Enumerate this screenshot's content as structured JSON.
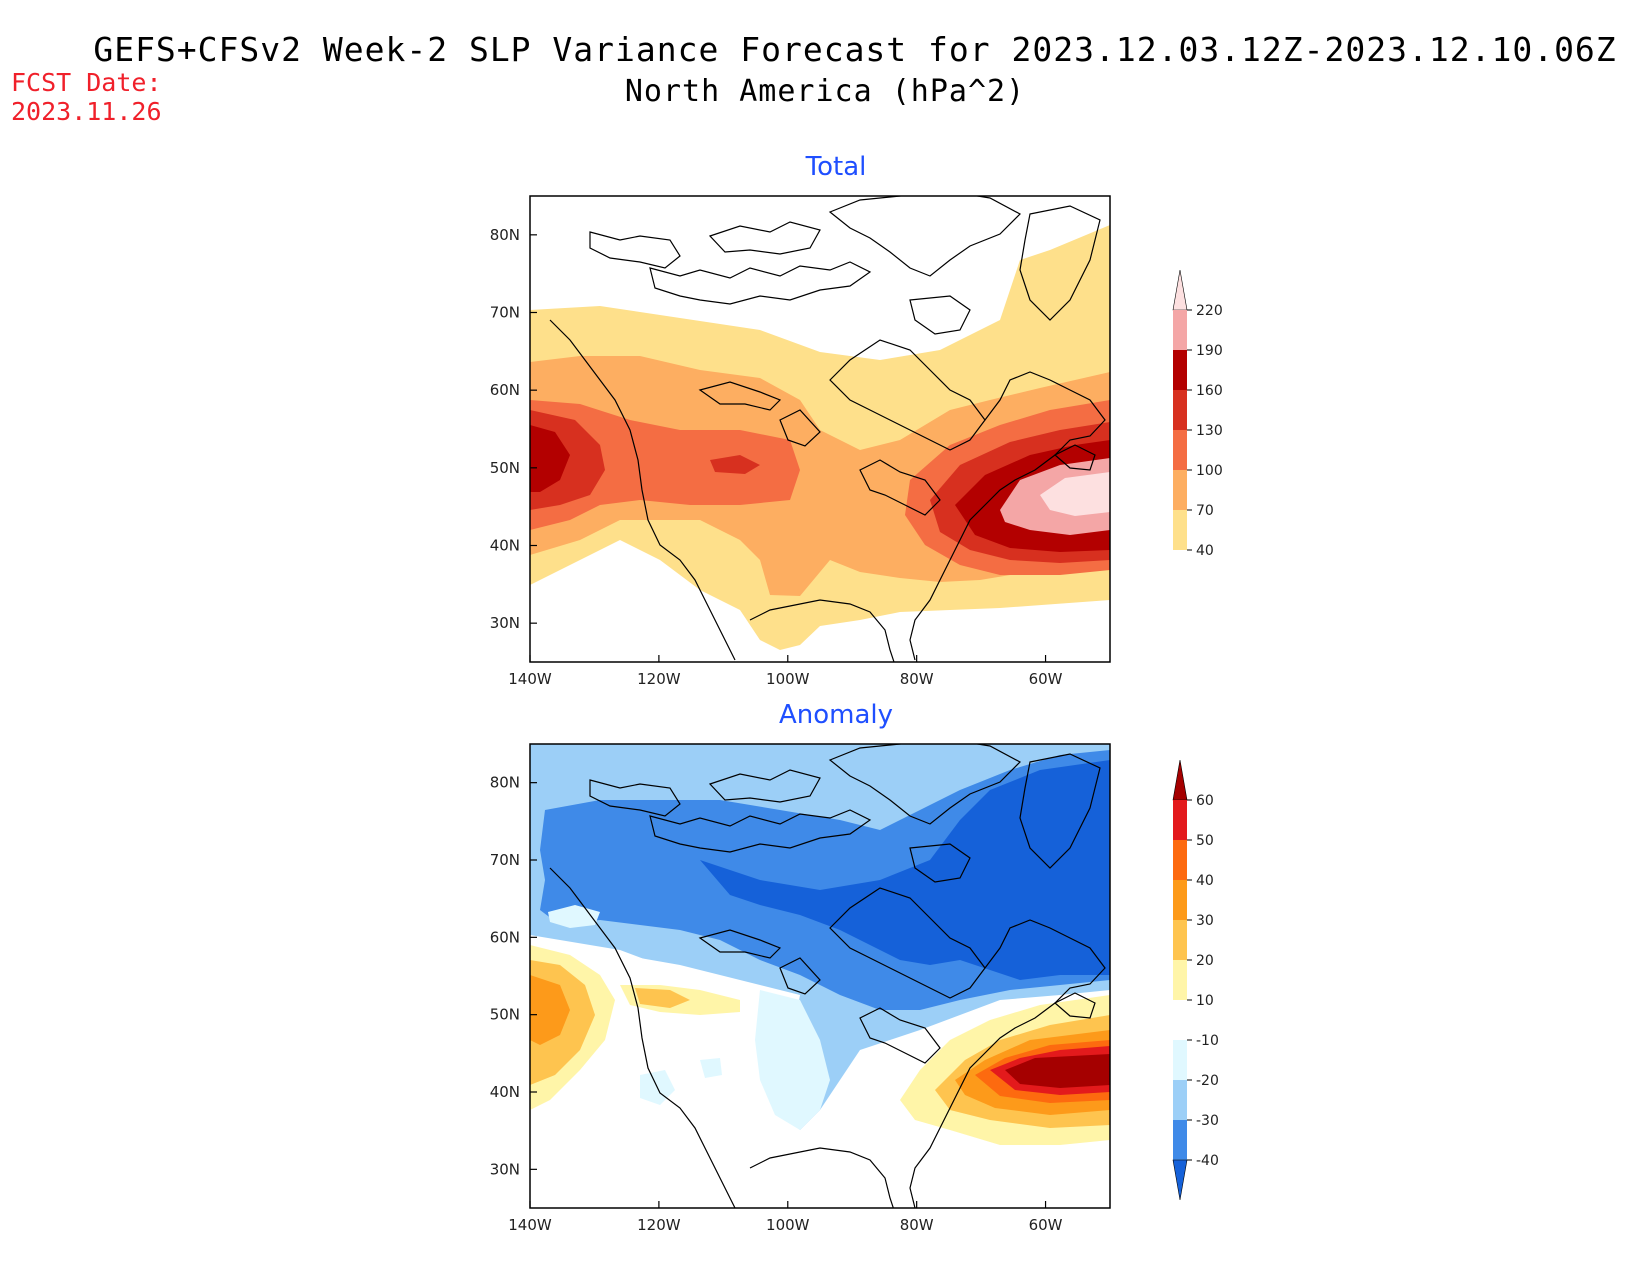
{
  "title": {
    "line1": "GEFS+CFSv2 Week-2 SLP Variance Forecast for 2023.12.03.12Z-2023.12.10.06Z",
    "line2": "North America (hPa^2)"
  },
  "forecast_date": {
    "label": "FCST Date:",
    "value": "2023.11.26"
  },
  "panels": [
    {
      "title": "Total",
      "lat_ticks": [
        "80N",
        "70N",
        "60N",
        "50N",
        "40N",
        "30N"
      ],
      "lon_ticks": [
        "140W",
        "120W",
        "100W",
        "80W",
        "60W"
      ],
      "colorbar": {
        "labels": [
          "40",
          "70",
          "100",
          "130",
          "160",
          "190",
          "220"
        ],
        "colors": [
          "#fee08b",
          "#fdae61",
          "#f46d43",
          "#d7301f",
          "#b30000",
          "#f4a6a6",
          "#fde0e0"
        ]
      }
    },
    {
      "title": "Anomaly",
      "lat_ticks": [
        "80N",
        "70N",
        "60N",
        "50N",
        "40N",
        "30N"
      ],
      "lon_ticks": [
        "140W",
        "120W",
        "100W",
        "80W",
        "60W"
      ],
      "colorbar": {
        "labels": [
          "60",
          "50",
          "40",
          "30",
          "20",
          "10",
          "-10",
          "-20",
          "-30",
          "-40"
        ],
        "colors": [
          "#a50000",
          "#e31a1c",
          "#fd6a0f",
          "#fd9a1a",
          "#fec44f",
          "#fff5a8",
          "#ffffff",
          "#e0f8ff",
          "#9ccff7",
          "#3f8ae8",
          "#1561d9"
        ]
      }
    }
  ]
}
